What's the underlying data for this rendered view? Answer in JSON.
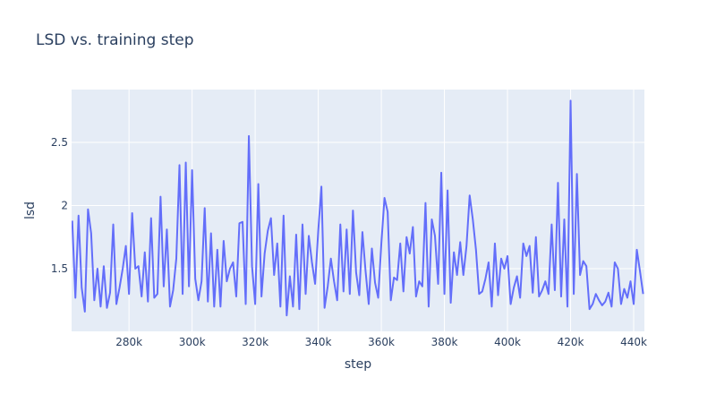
{
  "chart_data": {
    "type": "line",
    "title": "LSD vs. training step",
    "x_label": "step",
    "y_label": "lsd",
    "color": "#636efa",
    "grid": true,
    "x": [
      262000,
      263000,
      264000,
      265000,
      266000,
      267000,
      268000,
      269000,
      270000,
      271000,
      272000,
      273000,
      274000,
      275000,
      276000,
      277000,
      278000,
      279000,
      280000,
      281000,
      282000,
      283000,
      284000,
      285000,
      286000,
      287000,
      288000,
      289000,
      290000,
      291000,
      292000,
      293000,
      294000,
      295000,
      296000,
      297000,
      298000,
      299000,
      300000,
      301000,
      302000,
      303000,
      304000,
      305000,
      306000,
      307000,
      308000,
      309000,
      310000,
      311000,
      312000,
      313000,
      314000,
      315000,
      316000,
      317000,
      318000,
      319000,
      320000,
      321000,
      322000,
      323000,
      324000,
      325000,
      326000,
      327000,
      328000,
      329000,
      330000,
      331000,
      332000,
      333000,
      334000,
      335000,
      336000,
      337000,
      338000,
      339000,
      340000,
      341000,
      342000,
      343000,
      344000,
      345000,
      346000,
      347000,
      348000,
      349000,
      350000,
      351000,
      352000,
      353000,
      354000,
      355000,
      356000,
      357000,
      358000,
      359000,
      360000,
      361000,
      362000,
      363000,
      364000,
      365000,
      366000,
      367000,
      368000,
      369000,
      370000,
      371000,
      372000,
      373000,
      374000,
      375000,
      376000,
      377000,
      378000,
      379000,
      380000,
      381000,
      382000,
      383000,
      384000,
      385000,
      386000,
      387000,
      388000,
      389000,
      390000,
      391000,
      392000,
      393000,
      394000,
      395000,
      396000,
      397000,
      398000,
      399000,
      400000,
      401000,
      402000,
      403000,
      404000,
      405000,
      406000,
      407000,
      408000,
      409000,
      410000,
      411000,
      412000,
      413000,
      414000,
      415000,
      416000,
      417000,
      418000,
      419000,
      420000,
      421000,
      422000,
      423000,
      424000,
      425000,
      426000,
      427000,
      428000,
      429000,
      430000,
      431000,
      432000,
      433000,
      434000,
      435000,
      436000,
      437000,
      438000,
      439000,
      440000,
      441000,
      442000,
      443000
    ],
    "values": [
      1.88,
      1.27,
      1.92,
      1.35,
      1.16,
      1.97,
      1.78,
      1.25,
      1.5,
      1.2,
      1.52,
      1.19,
      1.31,
      1.85,
      1.22,
      1.35,
      1.5,
      1.68,
      1.3,
      1.94,
      1.5,
      1.52,
      1.28,
      1.63,
      1.24,
      1.9,
      1.27,
      1.3,
      2.07,
      1.36,
      1.81,
      1.2,
      1.33,
      1.58,
      2.32,
      1.3,
      2.34,
      1.36,
      2.28,
      1.42,
      1.25,
      1.4,
      1.98,
      1.24,
      1.78,
      1.2,
      1.65,
      1.2,
      1.72,
      1.4,
      1.5,
      1.55,
      1.28,
      1.86,
      1.87,
      1.22,
      2.55,
      1.52,
      1.22,
      2.17,
      1.28,
      1.62,
      1.8,
      1.9,
      1.45,
      1.7,
      1.2,
      1.92,
      1.13,
      1.44,
      1.2,
      1.77,
      1.18,
      1.85,
      1.3,
      1.76,
      1.55,
      1.38,
      1.8,
      2.15,
      1.19,
      1.36,
      1.58,
      1.4,
      1.25,
      1.85,
      1.32,
      1.81,
      1.3,
      1.96,
      1.47,
      1.29,
      1.79,
      1.48,
      1.22,
      1.66,
      1.39,
      1.27,
      1.7,
      2.06,
      1.95,
      1.25,
      1.43,
      1.41,
      1.7,
      1.32,
      1.75,
      1.62,
      1.83,
      1.28,
      1.4,
      1.36,
      2.02,
      1.2,
      1.89,
      1.76,
      1.38,
      2.26,
      1.3,
      2.12,
      1.23,
      1.63,
      1.45,
      1.71,
      1.45,
      1.68,
      2.08,
      1.89,
      1.65,
      1.3,
      1.32,
      1.42,
      1.55,
      1.2,
      1.7,
      1.29,
      1.58,
      1.5,
      1.6,
      1.22,
      1.35,
      1.44,
      1.27,
      1.7,
      1.6,
      1.68,
      1.31,
      1.75,
      1.28,
      1.33,
      1.4,
      1.3,
      1.85,
      1.33,
      2.18,
      1.28,
      1.89,
      1.2,
      2.83,
      1.3,
      2.25,
      1.45,
      1.56,
      1.52,
      1.18,
      1.22,
      1.3,
      1.25,
      1.21,
      1.24,
      1.31,
      1.2,
      1.55,
      1.5,
      1.22,
      1.34,
      1.27,
      1.4,
      1.22,
      1.65,
      1.48,
      1.3
    ],
    "xlim": [
      261800,
      443400
    ],
    "xticks": [
      {
        "value": 280000,
        "label": "280k"
      },
      {
        "value": 300000,
        "label": "300k"
      },
      {
        "value": 320000,
        "label": "320k"
      },
      {
        "value": 340000,
        "label": "340k"
      },
      {
        "value": 360000,
        "label": "360k"
      },
      {
        "value": 380000,
        "label": "380k"
      },
      {
        "value": 400000,
        "label": "400k"
      },
      {
        "value": 420000,
        "label": "420k"
      },
      {
        "value": 440000,
        "label": "440k"
      }
    ],
    "ylim": [
      1.004,
      2.918
    ],
    "yticks": [
      1.5,
      2,
      2.5
    ]
  }
}
